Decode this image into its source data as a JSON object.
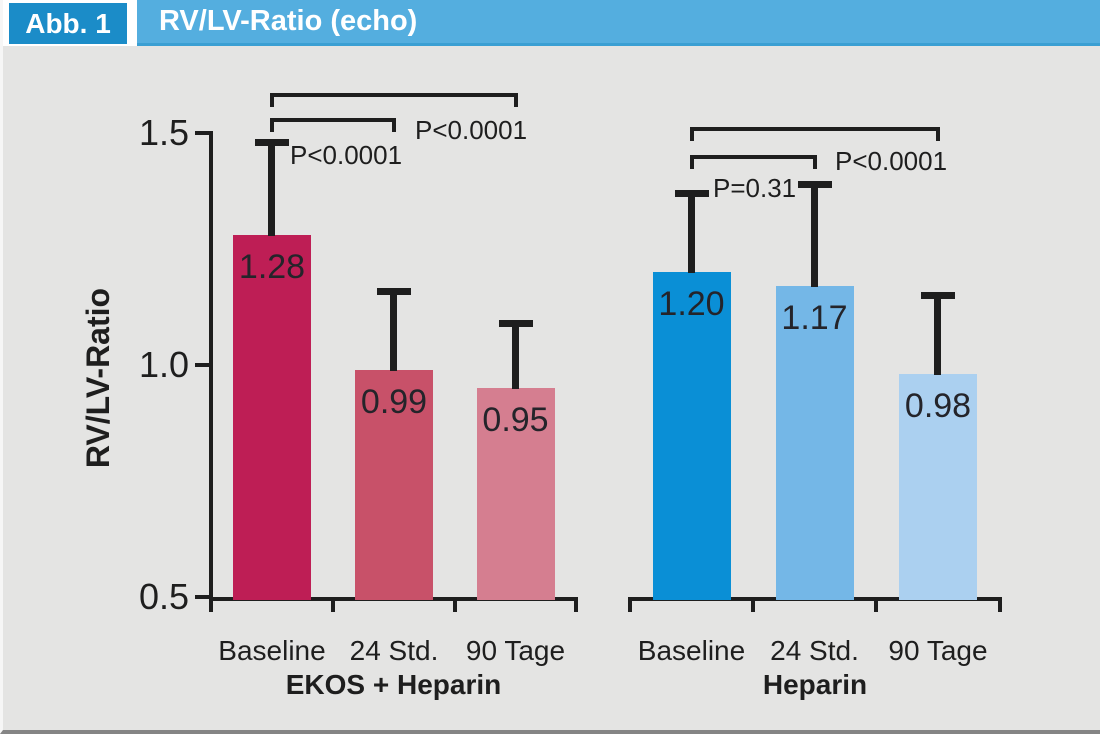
{
  "header": {
    "figure_label": "Abb. 1",
    "title": "RV/LV-Ratio (echo)"
  },
  "colors": {
    "header_bar": "#54aedf",
    "header_bar_border": "#3a9fd3",
    "figure_label_bg": "#1b8cc8",
    "chart_background": "#e4e4e3",
    "axis_and_text": "#1e1e1e",
    "bottom_border": "#858585",
    "ekos_bars": [
      "#be1e55",
      "#c85169",
      "#d57e90"
    ],
    "heparin_bars": [
      "#0a8fd6",
      "#74b7e7",
      "#abd0f0"
    ]
  },
  "chart_data": {
    "type": "bar",
    "title": "RV/LV-Ratio (echo)",
    "ylabel": "RV/LV-Ratio",
    "ylim": [
      0.5,
      1.5
    ],
    "grid": false,
    "yticks": [
      {
        "value": 1.5,
        "label": "1.5"
      },
      {
        "value": 1.0,
        "label": "1.0"
      },
      {
        "value": 0.5,
        "label": "0.5"
      }
    ],
    "categories": [
      "Baseline",
      "24 Std.",
      "90 Tage"
    ],
    "groups": [
      {
        "name": "EKOS + Heparin",
        "values": [
          1.28,
          0.99,
          0.95
        ],
        "value_labels": [
          "1.28",
          "0.99",
          "0.95"
        ],
        "error_top_values": [
          1.48,
          1.16,
          1.09
        ],
        "bar_colors": [
          "#be1e55",
          "#c85169",
          "#d57e90"
        ],
        "significance": [
          {
            "from": "Baseline",
            "to": "24 Std.",
            "from_index": 0,
            "to_index": 1,
            "label": "P<0.0001"
          },
          {
            "from": "Baseline",
            "to": "90 Tage",
            "from_index": 0,
            "to_index": 2,
            "label": "P<0.0001"
          }
        ]
      },
      {
        "name": "Heparin",
        "values": [
          1.2,
          1.17,
          0.98
        ],
        "value_labels": [
          "1.20",
          "1.17",
          "0.98"
        ],
        "error_top_values": [
          1.37,
          1.39,
          1.15
        ],
        "bar_colors": [
          "#0a8fd6",
          "#74b7e7",
          "#abd0f0"
        ],
        "significance": [
          {
            "from": "Baseline",
            "to": "24 Std.",
            "from_index": 0,
            "to_index": 1,
            "label": "P=0.31"
          },
          {
            "from": "Baseline",
            "to": "90 Tage",
            "from_index": 0,
            "to_index": 2,
            "label": "P<0.0001"
          }
        ]
      }
    ]
  }
}
